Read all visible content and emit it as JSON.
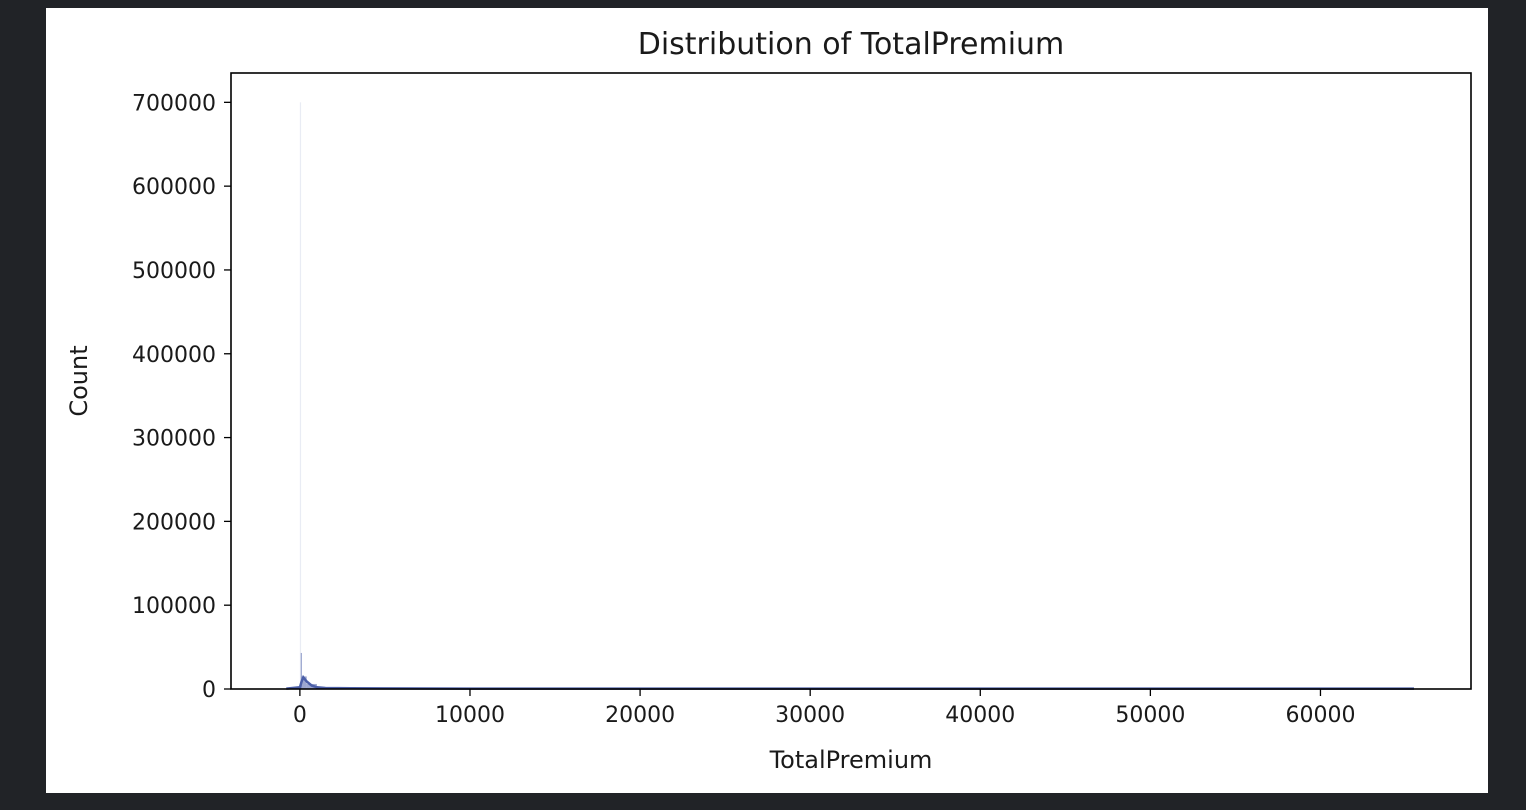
{
  "chart_data": {
    "type": "histogram",
    "title": "Distribution of TotalPremium",
    "xlabel": "TotalPremium",
    "ylabel": "Count",
    "xlim": [
      -4050,
      68850
    ],
    "ylim": [
      0,
      735000
    ],
    "x_ticks": [
      0,
      10000,
      20000,
      30000,
      40000,
      50000,
      60000
    ],
    "x_tick_labels": [
      "0",
      "10000",
      "20000",
      "30000",
      "40000",
      "50000",
      "60000"
    ],
    "y_ticks": [
      0,
      100000,
      200000,
      300000,
      400000,
      500000,
      600000,
      700000
    ],
    "y_tick_labels": [
      "0",
      "100000",
      "200000",
      "300000",
      "400000",
      "500000",
      "600000",
      "700000"
    ],
    "grid": false,
    "legend": "none",
    "colors": {
      "bar_fill": "#4c5fa8",
      "kde_line": "#4c5fa8",
      "axis": "#000000"
    },
    "bins": [
      {
        "x0": -800,
        "x1": 0,
        "count": 1000
      },
      {
        "x0": 0,
        "x1": 50,
        "count": 700000
      },
      {
        "x0": 50,
        "x1": 100,
        "count": 43000
      },
      {
        "x0": 100,
        "x1": 400,
        "count": 15000
      },
      {
        "x0": 400,
        "x1": 1000,
        "count": 6000
      },
      {
        "x0": 1000,
        "x1": 2000,
        "count": 2000
      },
      {
        "x0": 2000,
        "x1": 65500,
        "count": 500
      }
    ],
    "kde": {
      "x": [
        -800,
        0,
        100,
        200,
        400,
        700,
        1000,
        1500,
        3000,
        10000,
        30000,
        65500
      ],
      "y": [
        500,
        2000,
        9000,
        14000,
        9000,
        4000,
        2000,
        1200,
        800,
        500,
        500,
        500
      ]
    }
  }
}
